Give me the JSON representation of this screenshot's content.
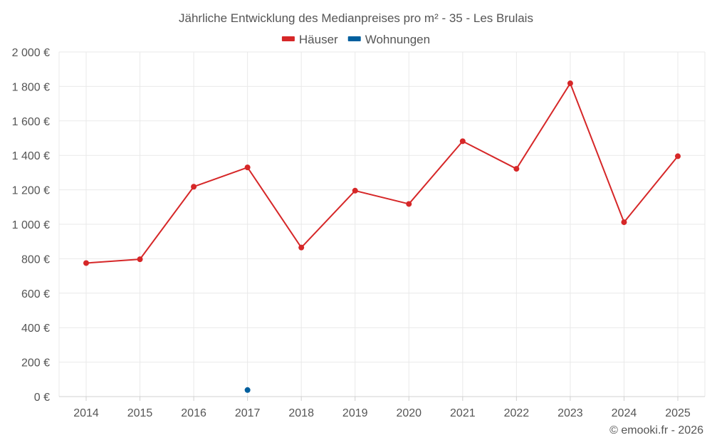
{
  "chart_data": {
    "type": "line",
    "title": "Jährliche Entwicklung des Medianpreises pro m² - 35 - Les Brulais",
    "categories": [
      "2014",
      "2015",
      "2016",
      "2017",
      "2018",
      "2019",
      "2020",
      "2021",
      "2022",
      "2023",
      "2024",
      "2025"
    ],
    "series": [
      {
        "name": "Häuser",
        "color": "#d62728",
        "values": [
          775,
          797,
          1218,
          1330,
          865,
          1195,
          1118,
          1482,
          1322,
          1818,
          1012,
          1395
        ]
      },
      {
        "name": "Wohnungen",
        "color": "#005f9e",
        "values": [
          null,
          null,
          null,
          38,
          null,
          null,
          null,
          null,
          null,
          null,
          null,
          null
        ]
      }
    ],
    "ylim": [
      0,
      2000
    ],
    "y_ticks": [
      0,
      200,
      400,
      600,
      800,
      1000,
      1200,
      1400,
      1600,
      1800,
      2000
    ],
    "y_tick_labels": [
      "0 €",
      "200 €",
      "400 €",
      "600 €",
      "800 €",
      "1 000 €",
      "1 200 €",
      "1 400 €",
      "1 600 €",
      "1 800 €",
      "2 000 €"
    ],
    "grid": true,
    "legend_position": "top-center"
  },
  "credit": "© emooki.fr - 2026"
}
